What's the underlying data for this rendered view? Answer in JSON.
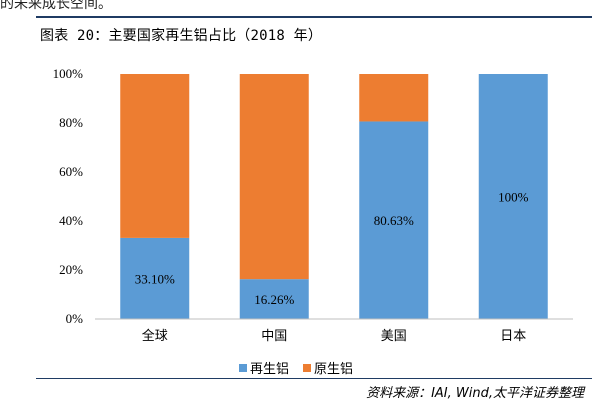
{
  "header": {
    "top_text": "的未来成长空间。",
    "figure_title": "图表 20：主要国家再生铝占比（2018 年）"
  },
  "source": "资料来源：IAI, Wind,太平洋证券整理",
  "colors": {
    "recycled": "#5b9bd5",
    "primary": "#ed7d31",
    "axis": "#bfbfbf",
    "rule": "#1f3b63"
  },
  "chart_data": {
    "type": "bar",
    "stacked": true,
    "percent_stacked": true,
    "categories": [
      "全球",
      "中国",
      "美国",
      "日本"
    ],
    "series": [
      {
        "name": "再生铝",
        "values": [
          33.1,
          16.26,
          80.63,
          100
        ],
        "color": "#5b9bd5"
      },
      {
        "name": "原生铝",
        "values": [
          66.9,
          83.74,
          19.37,
          0
        ],
        "color": "#ed7d31"
      }
    ],
    "data_labels": [
      "33.10%",
      "16.26%",
      "80.63%",
      "100%"
    ],
    "title": "",
    "xlabel": "",
    "ylabel": "",
    "ylim": [
      0,
      100
    ],
    "yticks": [
      "0%",
      "20%",
      "40%",
      "60%",
      "80%",
      "100%"
    ],
    "grid": false,
    "legend_position": "bottom"
  },
  "legend": {
    "items": [
      {
        "label": "再生铝"
      },
      {
        "label": "原生铝"
      }
    ]
  }
}
